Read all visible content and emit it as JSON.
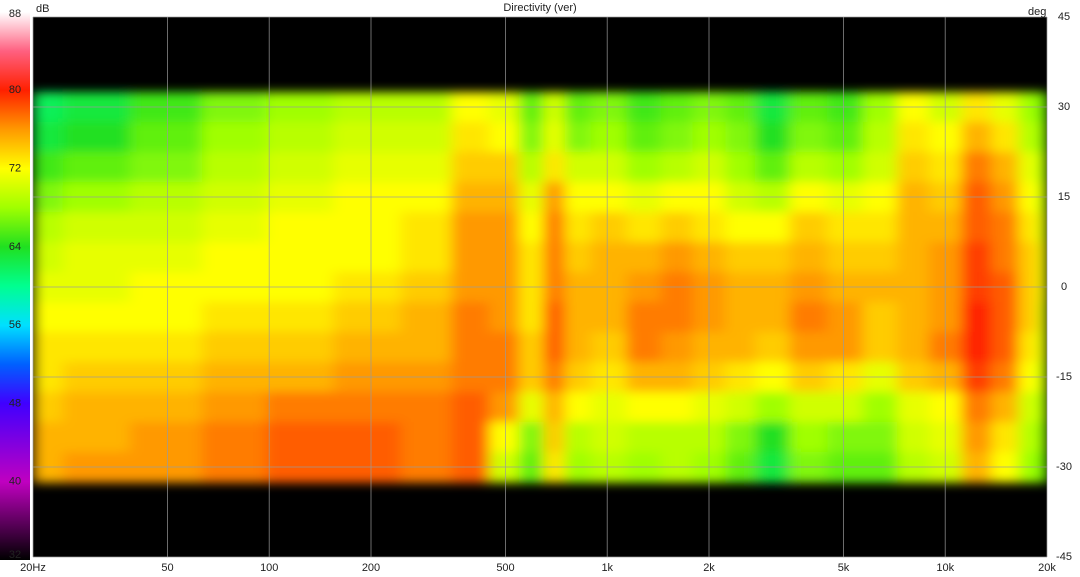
{
  "chart_data": {
    "type": "heatmap",
    "title": "Directivity (ver)",
    "colorbar_label": "dB",
    "y_label": "deg",
    "log_x": true,
    "grid": true,
    "xlim": [
      20,
      20000
    ],
    "xticks": [
      {
        "value": 20,
        "label": "20Hz"
      },
      50,
      100,
      200,
      500,
      {
        "value": 1000,
        "label": "1k"
      },
      {
        "value": 2000,
        "label": "2k"
      },
      {
        "value": 5000,
        "label": "5k"
      },
      {
        "value": 10000,
        "label": "10k"
      },
      {
        "value": 20000,
        "label": "20k"
      }
    ],
    "ylim": [
      -45,
      45
    ],
    "yticks": [
      45,
      30,
      15,
      0,
      -15,
      -30,
      -45
    ],
    "clim": [
      32,
      88
    ],
    "cticks": [
      88,
      80,
      72,
      64,
      56,
      48,
      40,
      32
    ],
    "colorscale": [
      [
        32,
        "#000000"
      ],
      [
        40,
        "#c000c0"
      ],
      [
        48,
        "#4000ff"
      ],
      [
        52,
        "#0060ff"
      ],
      [
        56,
        "#00e0ff"
      ],
      [
        60,
        "#00ff90"
      ],
      [
        64,
        "#20e020"
      ],
      [
        68,
        "#a0ff00"
      ],
      [
        72,
        "#ffff00"
      ],
      [
        76,
        "#ff9900"
      ],
      [
        80,
        "#ff2000"
      ],
      [
        84,
        "#ff6080"
      ],
      [
        88,
        "#ffffff"
      ]
    ],
    "x": [
      20,
      30,
      50,
      80,
      120,
      200,
      300,
      400,
      500,
      600,
      700,
      800,
      1000,
      1300,
      1600,
      2000,
      2500,
      3000,
      4000,
      5000,
      6500,
      8000,
      10000,
      12500,
      15000,
      18000,
      20000
    ],
    "y": [
      30,
      25,
      20,
      15,
      10,
      5,
      0,
      -5,
      -10,
      -15,
      -20,
      -25,
      -30
    ],
    "z": [
      [
        62,
        63,
        65,
        67,
        68,
        69,
        69,
        72,
        71,
        66,
        70,
        66,
        67,
        65,
        66,
        67,
        66,
        63,
        66,
        65,
        68,
        72,
        70,
        73,
        71,
        68,
        66
      ],
      [
        63,
        64,
        66,
        68,
        69,
        70,
        70,
        73,
        72,
        67,
        71,
        67,
        68,
        66,
        67,
        68,
        67,
        64,
        67,
        66,
        69,
        73,
        72,
        75,
        73,
        69,
        67
      ],
      [
        65,
        66,
        67,
        69,
        70,
        71,
        71,
        74,
        74,
        69,
        73,
        70,
        70,
        68,
        69,
        70,
        68,
        66,
        69,
        68,
        70,
        74,
        73,
        77,
        75,
        71,
        68
      ],
      [
        67,
        68,
        69,
        70,
        71,
        72,
        72,
        75,
        75,
        71,
        76,
        72,
        72,
        71,
        72,
        72,
        70,
        69,
        72,
        71,
        72,
        75,
        74,
        78,
        76,
        72,
        69
      ],
      [
        69,
        70,
        70,
        71,
        72,
        72,
        73,
        76,
        76,
        72,
        77,
        73,
        74,
        73,
        74,
        73,
        72,
        72,
        74,
        73,
        73,
        75,
        75,
        78,
        77,
        73,
        70
      ],
      [
        70,
        71,
        71,
        72,
        72,
        72,
        73,
        76,
        76,
        73,
        77,
        74,
        75,
        75,
        76,
        75,
        74,
        74,
        75,
        74,
        74,
        75,
        76,
        79,
        77,
        74,
        71
      ],
      [
        71,
        71,
        72,
        72,
        72,
        73,
        74,
        76,
        76,
        73,
        77,
        75,
        75,
        76,
        77,
        76,
        75,
        75,
        76,
        75,
        75,
        75,
        76,
        79,
        78,
        74,
        71
      ],
      [
        72,
        72,
        72,
        73,
        73,
        74,
        75,
        77,
        76,
        73,
        78,
        75,
        75,
        77,
        77,
        76,
        75,
        75,
        77,
        76,
        74,
        75,
        76,
        80,
        78,
        74,
        70
      ],
      [
        73,
        73,
        73,
        74,
        74,
        75,
        75,
        77,
        77,
        74,
        78,
        75,
        74,
        77,
        76,
        75,
        75,
        74,
        76,
        76,
        74,
        75,
        77,
        80,
        78,
        73,
        70
      ],
      [
        73,
        74,
        74,
        75,
        75,
        76,
        76,
        77,
        77,
        74,
        77,
        74,
        73,
        75,
        75,
        74,
        73,
        72,
        74,
        73,
        71,
        74,
        75,
        79,
        77,
        72,
        69
      ],
      [
        74,
        75,
        75,
        76,
        77,
        77,
        77,
        78,
        76,
        71,
        75,
        72,
        71,
        72,
        72,
        71,
        70,
        68,
        70,
        70,
        68,
        71,
        72,
        77,
        75,
        70,
        68
      ],
      [
        75,
        75,
        76,
        77,
        78,
        78,
        77,
        78,
        72,
        67,
        74,
        69,
        70,
        69,
        69,
        69,
        67,
        64,
        68,
        67,
        67,
        70,
        71,
        76,
        73,
        69,
        67
      ],
      [
        75,
        76,
        76,
        77,
        78,
        78,
        77,
        78,
        70,
        66,
        73,
        68,
        69,
        68,
        69,
        68,
        66,
        63,
        67,
        66,
        66,
        69,
        70,
        75,
        72,
        68,
        66
      ]
    ]
  }
}
